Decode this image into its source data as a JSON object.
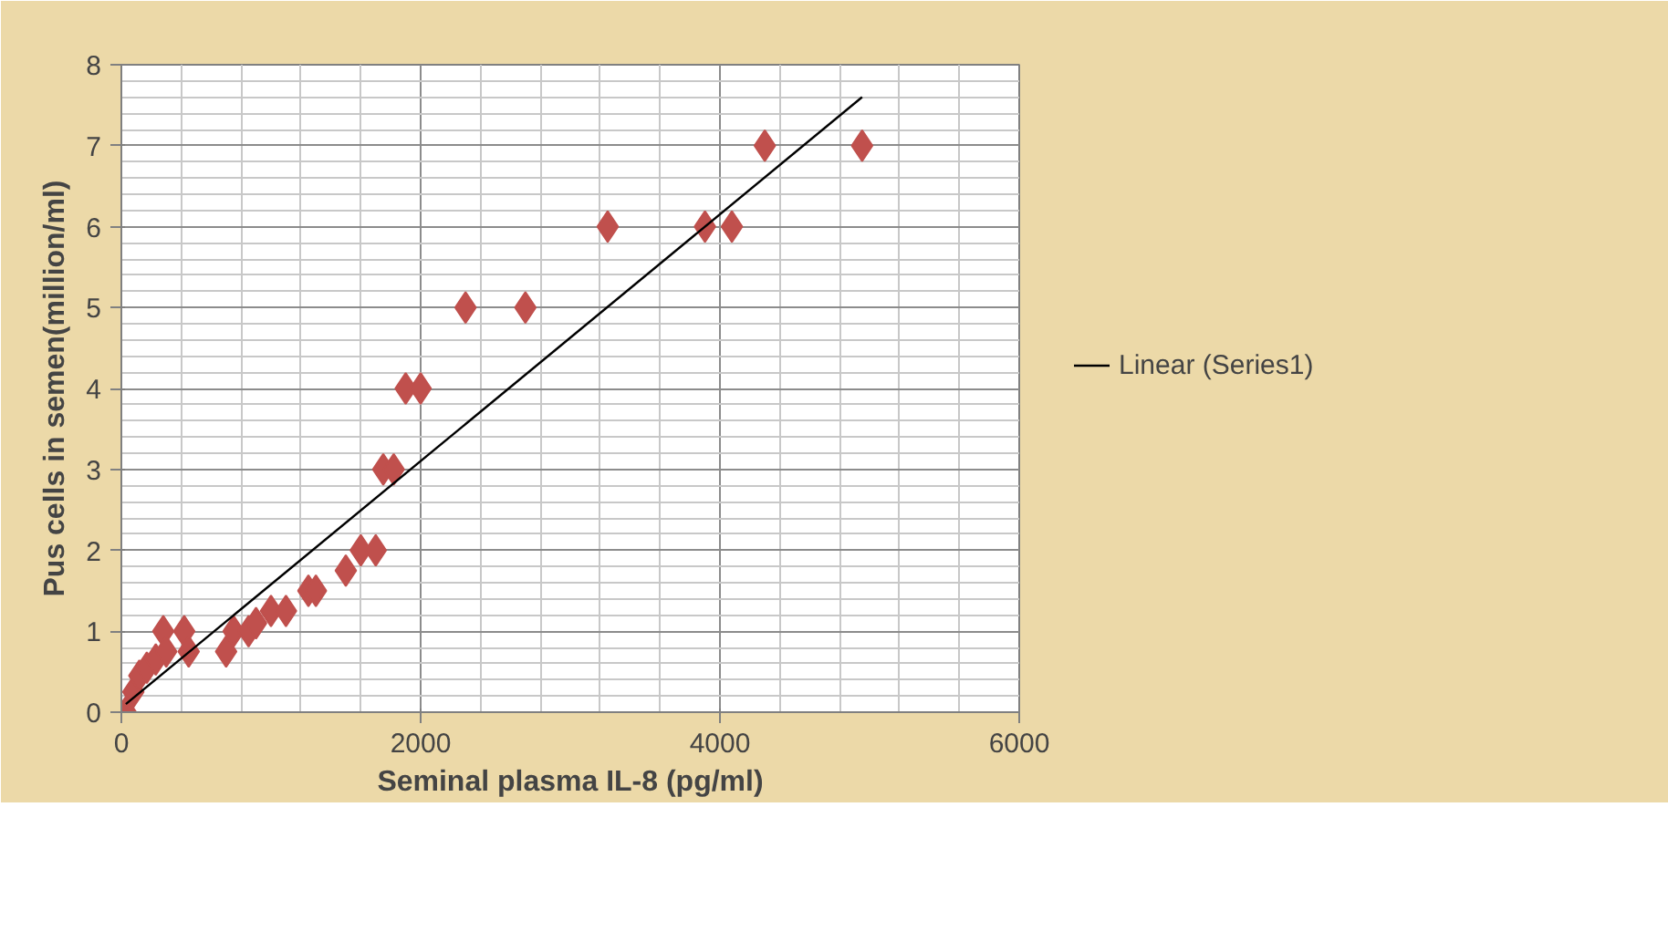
{
  "chart_data": {
    "type": "scatter",
    "xlabel": "Seminal plasma IL-8 (pg/ml)",
    "ylabel": "Pus cells in semen(million/ml)",
    "xlim": [
      0,
      6000
    ],
    "ylim": [
      0,
      8
    ],
    "xticks": [
      0,
      2000,
      4000,
      6000
    ],
    "yticks": [
      0,
      1,
      2,
      3,
      4,
      5,
      6,
      7,
      8
    ],
    "grid": true,
    "legend": "right",
    "series": [
      {
        "color": "#c0504d",
        "marker": "diamond",
        "x": [
          30,
          80,
          120,
          170,
          230,
          280,
          300,
          420,
          450,
          700,
          750,
          850,
          900,
          1000,
          1100,
          1250,
          1300,
          1500,
          1600,
          1700,
          1750,
          1820,
          1900,
          2000,
          2300,
          2700,
          3250,
          3900,
          4080,
          4300,
          4950
        ],
        "values": [
          0,
          0.25,
          0.45,
          0.55,
          0.65,
          1.0,
          0.75,
          1.0,
          0.75,
          0.75,
          1.0,
          1.0,
          1.1,
          1.25,
          1.25,
          1.5,
          1.5,
          1.75,
          2.0,
          2.0,
          3.0,
          3.0,
          4.0,
          4.0,
          5.0,
          5.0,
          6.0,
          6.0,
          6.0,
          7.0,
          7.0
        ]
      },
      {
        "type": "line",
        "name": "Linear (Series1)",
        "color": "#000000",
        "x": [
          30,
          4950
        ],
        "values": [
          0.1,
          7.6
        ]
      }
    ]
  }
}
